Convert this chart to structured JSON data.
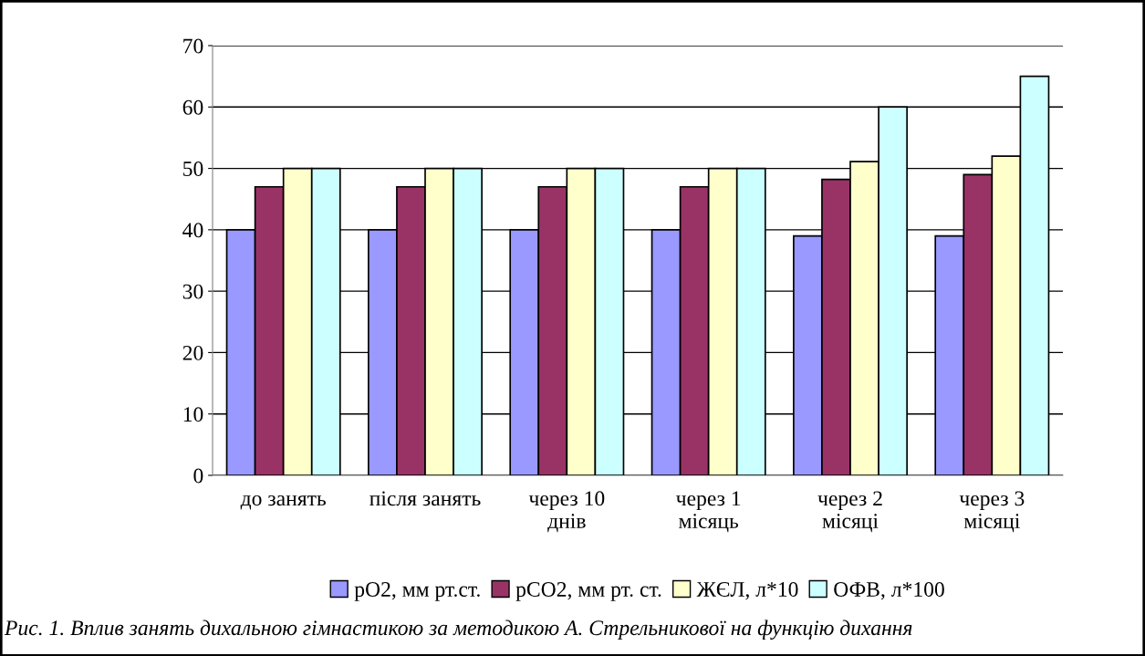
{
  "chart_data": {
    "type": "bar",
    "categories": [
      "до занять",
      "після занять",
      "через 10\nднів",
      "через 1\nмісяць",
      "через 2\nмісяці",
      "через 3\nмісяці"
    ],
    "series": [
      {
        "name": "pO2, мм рт.ст.",
        "color": "#9999ff",
        "values": [
          40,
          40,
          40,
          40,
          39,
          39
        ]
      },
      {
        "name": "pCO2, мм рт. ст.",
        "color": "#993366",
        "values": [
          47,
          47,
          47,
          47,
          48.2,
          49
        ]
      },
      {
        "name": "ЖЄЛ, л*10",
        "color": "#ffffcc",
        "values": [
          50,
          50,
          50,
          50,
          51.1,
          52
        ]
      },
      {
        "name": "ОФВ, л*100",
        "color": "#ccffff",
        "values": [
          50,
          50,
          50,
          50,
          60,
          65
        ]
      }
    ],
    "ylim": [
      0,
      70
    ],
    "yticks": [
      0,
      10,
      20,
      30,
      40,
      50,
      60,
      70
    ],
    "grid": "y",
    "legend": "bottom",
    "annotations": [
      "Рис. 1. Вплив занять дихальною гімнастикою за методикою А. Стрельникової на функцію дихання"
    ]
  }
}
